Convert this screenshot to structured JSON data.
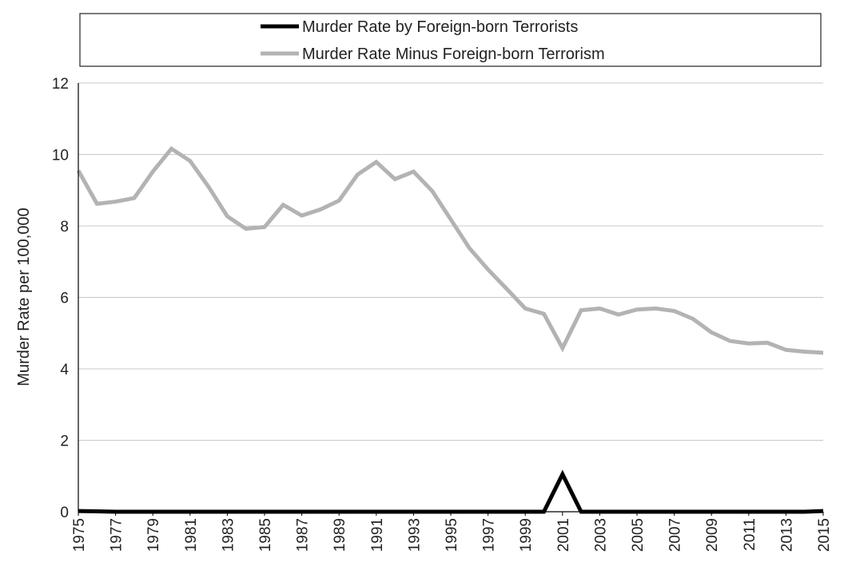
{
  "chart_data": {
    "type": "line",
    "title": "",
    "xlabel": "",
    "ylabel": "Murder Rate per 100,000",
    "ylim": [
      0,
      12
    ],
    "yticks": [
      0,
      2,
      4,
      6,
      8,
      10,
      12
    ],
    "xlim": [
      1975,
      2015
    ],
    "xtick_labels": [
      "1975",
      "1977",
      "1979",
      "1981",
      "1983",
      "1985",
      "1987",
      "1989",
      "1991",
      "1993",
      "1995",
      "1997",
      "1999",
      "2001",
      "2003",
      "2005",
      "2007",
      "2009",
      "2011",
      "2013",
      "2015"
    ],
    "grid": true,
    "legend_position": "top",
    "x": [
      1975,
      1976,
      1977,
      1978,
      1979,
      1980,
      1981,
      1982,
      1983,
      1984,
      1985,
      1986,
      1987,
      1988,
      1989,
      1990,
      1991,
      1992,
      1993,
      1994,
      1995,
      1996,
      1997,
      1998,
      1999,
      2000,
      2001,
      2002,
      2003,
      2004,
      2005,
      2006,
      2007,
      2008,
      2009,
      2010,
      2011,
      2012,
      2013,
      2014,
      2015
    ],
    "series": [
      {
        "name": "Murder Rate by Foreign-born Terrorists",
        "color": "#000000",
        "values": [
          0.02,
          0.01,
          0.0,
          0.0,
          0.0,
          0.0,
          0.0,
          0.0,
          0.0,
          0.0,
          0.0,
          0.0,
          0.0,
          0.0,
          0.0,
          0.0,
          0.0,
          0.0,
          0.0,
          0.0,
          0.0,
          0.0,
          0.0,
          0.0,
          0.0,
          0.0,
          1.05,
          0.0,
          0.0,
          0.0,
          0.0,
          0.0,
          0.0,
          0.0,
          0.0,
          0.0,
          0.0,
          0.0,
          0.0,
          0.0,
          0.02
        ]
      },
      {
        "name": "Murder Rate Minus Foreign-born Terrorism",
        "color": "#b3b3b3",
        "values": [
          9.55,
          8.62,
          8.68,
          8.78,
          9.52,
          10.16,
          9.82,
          9.09,
          8.27,
          7.92,
          7.97,
          8.59,
          8.29,
          8.46,
          8.71,
          9.44,
          9.79,
          9.31,
          9.52,
          8.98,
          8.18,
          7.38,
          6.78,
          6.24,
          5.69,
          5.54,
          4.58,
          5.64,
          5.69,
          5.52,
          5.66,
          5.69,
          5.62,
          5.4,
          5.02,
          4.78,
          4.71,
          4.73,
          4.53,
          4.48,
          4.45
        ]
      }
    ]
  }
}
